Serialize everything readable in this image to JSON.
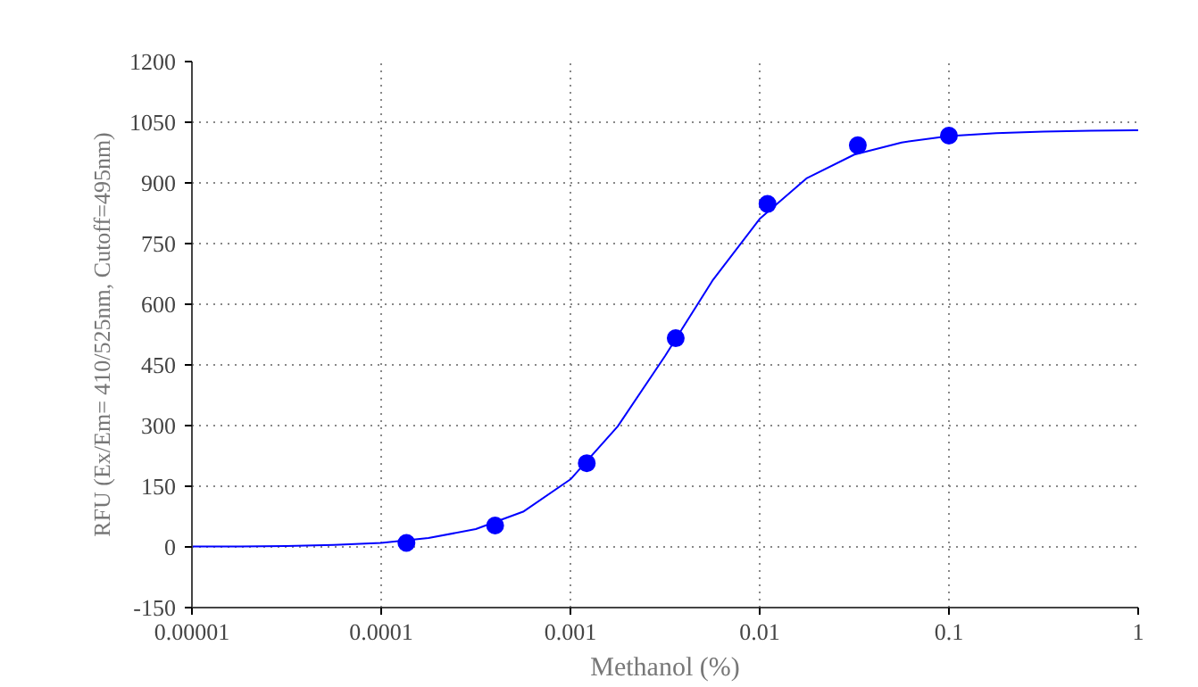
{
  "chart_data": {
    "type": "scatter",
    "xlabel": "Methanol (%)",
    "ylabel": "RFU (Ex/Em= 410/525nm, Cutoff=495nm)",
    "log": "x",
    "grid": true,
    "marker": "circle",
    "xlim": [
      1e-05,
      1
    ],
    "ylim": [
      -150,
      1200
    ],
    "xticks": [
      {
        "value": 1e-05,
        "label": "0.00001"
      },
      {
        "value": 0.0001,
        "label": "0.0001"
      },
      {
        "value": 0.001,
        "label": "0.001"
      },
      {
        "value": 0.01,
        "label": "0.01"
      },
      {
        "value": 0.1,
        "label": "0.1"
      },
      {
        "value": 1,
        "label": "1"
      }
    ],
    "yticks": [
      -150,
      0,
      150,
      300,
      450,
      600,
      750,
      900,
      1050,
      1200
    ],
    "series": [
      {
        "color": "#0000ff",
        "x": [
          0.000136,
          0.0004,
          0.00122,
          0.0036,
          0.011,
          0.033,
          0.1
        ],
        "values": [
          10,
          53,
          207,
          516,
          848,
          993,
          1017
        ]
      },
      {
        "type": "line",
        "color": "#0000ff",
        "marker": "none",
        "x": [
          1e-05,
          1.778e-05,
          3.162e-05,
          5.623e-05,
          0.0001,
          0.0001778,
          0.0003162,
          0.0005623,
          0.001,
          0.001778,
          0.003162,
          0.005623,
          0.01,
          0.01778,
          0.03162,
          0.05623,
          0.1,
          0.1778,
          0.3162,
          0.5623,
          1
        ],
        "values": [
          1,
          1,
          2,
          5,
          10,
          22,
          44,
          87,
          167,
          298,
          472,
          658,
          811,
          912,
          970,
          1000,
          1016,
          1023,
          1027,
          1029,
          1030
        ]
      }
    ]
  }
}
